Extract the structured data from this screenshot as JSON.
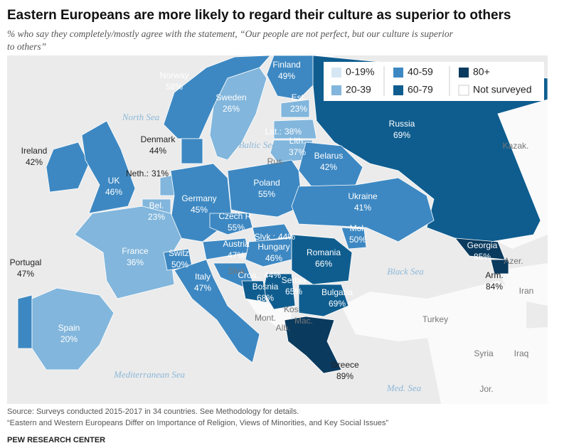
{
  "title": "Eastern Europeans are more likely to regard their culture as superior to others",
  "subtitle": [
    "% who say they completely/mostly agree with the statement, “Our people are not perfect, but our culture is superior",
    "to others”"
  ],
  "legend": {
    "items": [
      {
        "label": "0-19%",
        "min": 0,
        "color": "#d6e7f3"
      },
      {
        "label": "20-39",
        "min": 20,
        "color": "#82b6dc"
      },
      {
        "label": "40-59",
        "min": 40,
        "color": "#3d88c2"
      },
      {
        "label": "60-79",
        "min": 60,
        "color": "#0f5d8f"
      },
      {
        "label": "80+",
        "min": 80,
        "color": "#0a3a5e"
      }
    ],
    "not_surveyed": {
      "label": "Not surveyed",
      "color": "#ffffff"
    }
  },
  "countries": [
    {
      "name": "Finland",
      "value": 49,
      "value_label": "49%"
    },
    {
      "name": "Norway",
      "value": 58,
      "value_label": "58%"
    },
    {
      "name": "Sweden",
      "value": 26,
      "value_label": "26%"
    },
    {
      "name": "Est.",
      "value": 23,
      "value_label": "23%"
    },
    {
      "name": "Lat.:",
      "value": 38,
      "value_label": "38%"
    },
    {
      "name": "Lith.",
      "value": 37,
      "value_label": "37%"
    },
    {
      "name": "Russia",
      "value": 69,
      "value_label": "69%"
    },
    {
      "name": "Belarus",
      "value": 42,
      "value_label": "42%"
    },
    {
      "name": "Denmark",
      "value": 44,
      "value_label": "44%"
    },
    {
      "name": "Ireland",
      "value": 42,
      "value_label": "42%"
    },
    {
      "name": "UK",
      "value": 46,
      "value_label": "46%"
    },
    {
      "name": "Neth.:",
      "value": 31,
      "value_label": "31%"
    },
    {
      "name": "Bel.",
      "value": 23,
      "value_label": "23%"
    },
    {
      "name": "Germany",
      "value": 45,
      "value_label": "45%"
    },
    {
      "name": "Poland",
      "value": 55,
      "value_label": "55%"
    },
    {
      "name": "Ukraine",
      "value": 41,
      "value_label": "41%"
    },
    {
      "name": "Czech R.",
      "value": 55,
      "value_label": "55%"
    },
    {
      "name": "Slvk.:",
      "value": 44,
      "value_label": "44%"
    },
    {
      "name": "Mol.",
      "value": 50,
      "value_label": "50%"
    },
    {
      "name": "France",
      "value": 36,
      "value_label": "36%"
    },
    {
      "name": "Switz.",
      "value": 50,
      "value_label": "50%"
    },
    {
      "name": "Austria",
      "value": 47,
      "value_label": "47%"
    },
    {
      "name": "Hungary",
      "value": 46,
      "value_label": "46%"
    },
    {
      "name": "Romania",
      "value": 66,
      "value_label": "66%"
    },
    {
      "name": "Georgia",
      "value": 85,
      "value_label": "85%"
    },
    {
      "name": "Arm.",
      "value": 84,
      "value_label": "84%"
    },
    {
      "name": "Portugal",
      "value": 47,
      "value_label": "47%"
    },
    {
      "name": "Italy",
      "value": 47,
      "value_label": "47%"
    },
    {
      "name": "Croa.:",
      "value": 44,
      "value_label": "44%"
    },
    {
      "name": "Serbia",
      "value": 65,
      "value_label": "65%"
    },
    {
      "name": "Bosnia",
      "value": 68,
      "value_label": "68%"
    },
    {
      "name": "Bulgaria",
      "value": 69,
      "value_label": "69%"
    },
    {
      "name": "Spain",
      "value": 20,
      "value_label": "20%"
    },
    {
      "name": "Greece",
      "value": 89,
      "value_label": "89%"
    }
  ],
  "place_labels": [
    "North Sea",
    "Baltic Sea",
    "Black Sea",
    "Mediterranean Sea",
    "Med. Sea",
    "Kazak.",
    "Azer.",
    "Iran",
    "Turkey",
    "Syria",
    "Iraq",
    "Jor.",
    "Rus.",
    "Slva",
    "Mont.",
    "Kos.",
    "Alb.",
    "Mac."
  ],
  "footer": {
    "source": "Source: Surveys conducted 2015-2017 in 34 countries. See Methodology for details.",
    "note": "“Eastern and Western Europeans Differ on Importance of Religion, Views of Minorities, and Key Social Issues”",
    "brand": "PEW RESEARCH CENTER"
  }
}
